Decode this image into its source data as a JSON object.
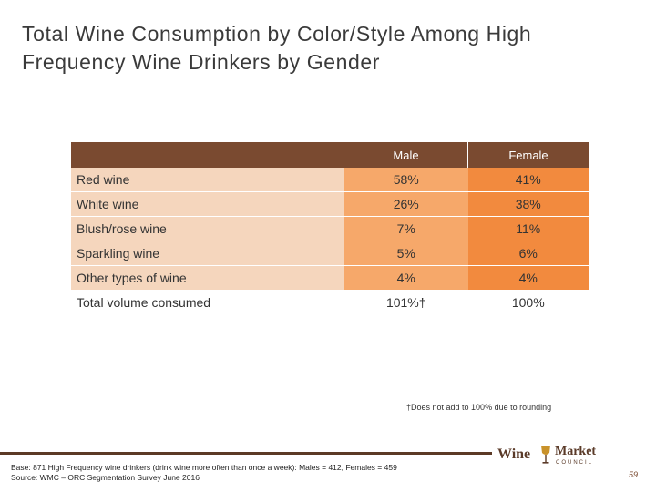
{
  "title": "Total Wine Consumption by Color/Style Among High Frequency Wine Drinkers by Gender",
  "table": {
    "headers": [
      "",
      "Male",
      "Female"
    ],
    "rows": [
      {
        "label": "Red wine",
        "male": "58%",
        "female": "41%"
      },
      {
        "label": "White wine",
        "male": "26%",
        "female": "38%"
      },
      {
        "label": "Blush/rose wine",
        "male": "7%",
        "female": "11%"
      },
      {
        "label": "Sparkling wine",
        "male": "5%",
        "female": "6%"
      },
      {
        "label": "Other types of wine",
        "male": "4%",
        "female": "4%"
      }
    ],
    "total": {
      "label": "Total volume consumed",
      "male": "101%†",
      "female": "100%"
    }
  },
  "footnote": "†Does not add to 100% due to rounding",
  "source": {
    "base": "Base: 871 High Frequency wine drinkers (drink wine more often than once a week): Males = 412, Females = 459",
    "line2": "Source: WMC – ORC Segmentation Survey June 2016"
  },
  "logo": {
    "word1": "Wine",
    "word2": "Market",
    "word3": "COUNCIL"
  },
  "page_number": "59",
  "colors": {
    "header": "#7a4a30",
    "light": "#f5d6bd",
    "medium": "#f6a86a",
    "dark": "#f28a3e"
  }
}
